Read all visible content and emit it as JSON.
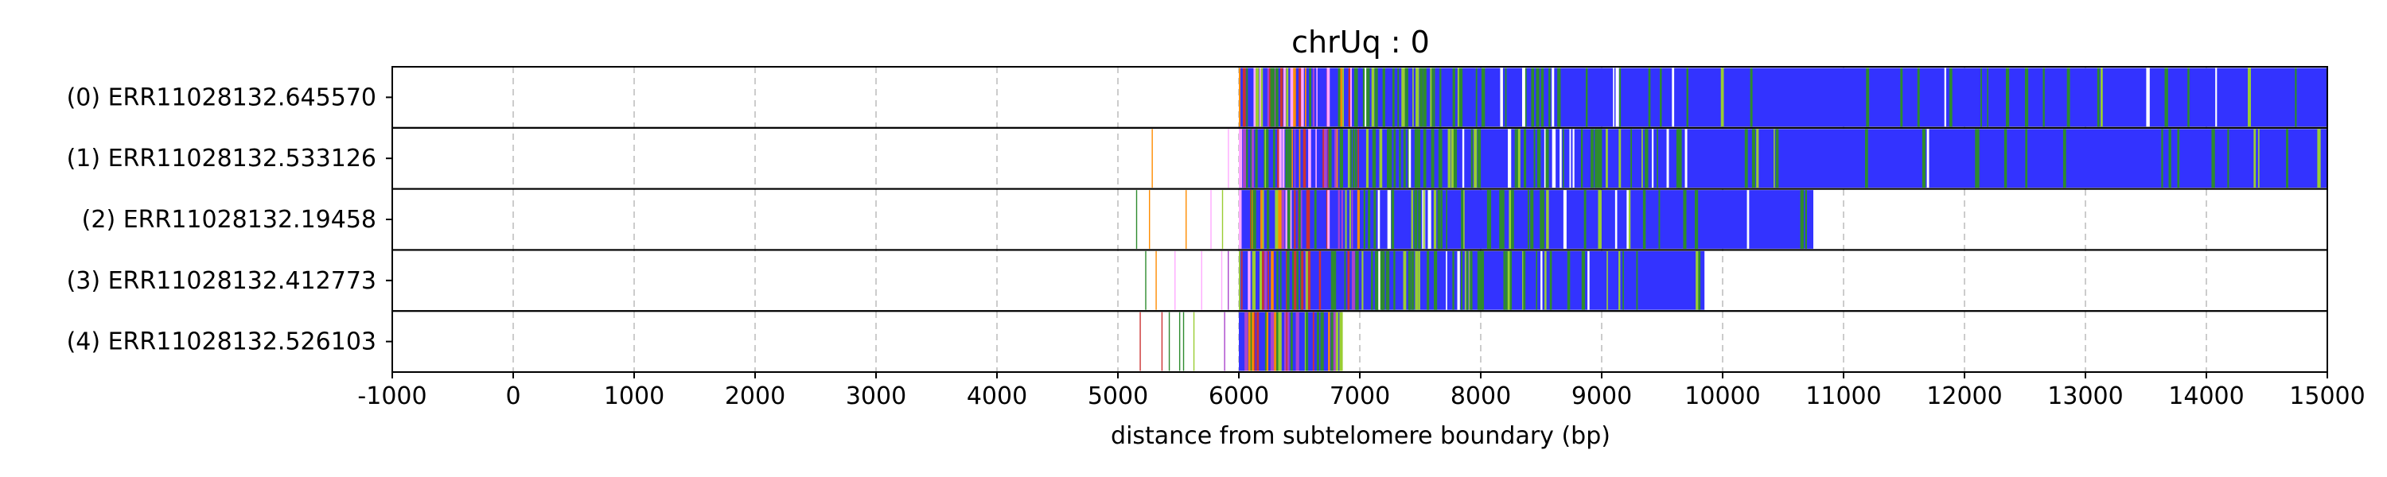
{
  "chart_data": {
    "type": "heatmap",
    "title": "chrUq : 0",
    "xlabel": "distance from subtelomere boundary (bp)",
    "ylabel": "",
    "xlim": [
      -1000,
      15000
    ],
    "xticks": [
      -1000,
      0,
      1000,
      2000,
      3000,
      4000,
      5000,
      6000,
      7000,
      8000,
      9000,
      10000,
      11000,
      12000,
      13000,
      14000,
      15000
    ],
    "grid": "vertical dashed",
    "colors": {
      "telomere_repeat": "#3333ff",
      "green": "#2e8b2e",
      "light_green": "#9acd32",
      "pink": "#ffaaff",
      "orange": "#ff8c00",
      "red": "#cc3333",
      "purple": "#aa44cc"
    },
    "reads": [
      {
        "label": "(0) ERR11028132.645570",
        "start": 5900,
        "end": 15000,
        "dense_start": 6000
      },
      {
        "label": "(1) ERR11028132.533126",
        "start": 5180,
        "end": 15000,
        "dense_start": 6000
      },
      {
        "label": "(2) ERR11028132.19458",
        "start": 5150,
        "end": 10750,
        "dense_start": 6000
      },
      {
        "label": "(3) ERR11028132.412773",
        "start": 5150,
        "end": 9850,
        "dense_start": 6000
      },
      {
        "label": "(4) ERR11028132.526103",
        "start": 5180,
        "end": 6850,
        "dense_start": 6000
      }
    ]
  }
}
